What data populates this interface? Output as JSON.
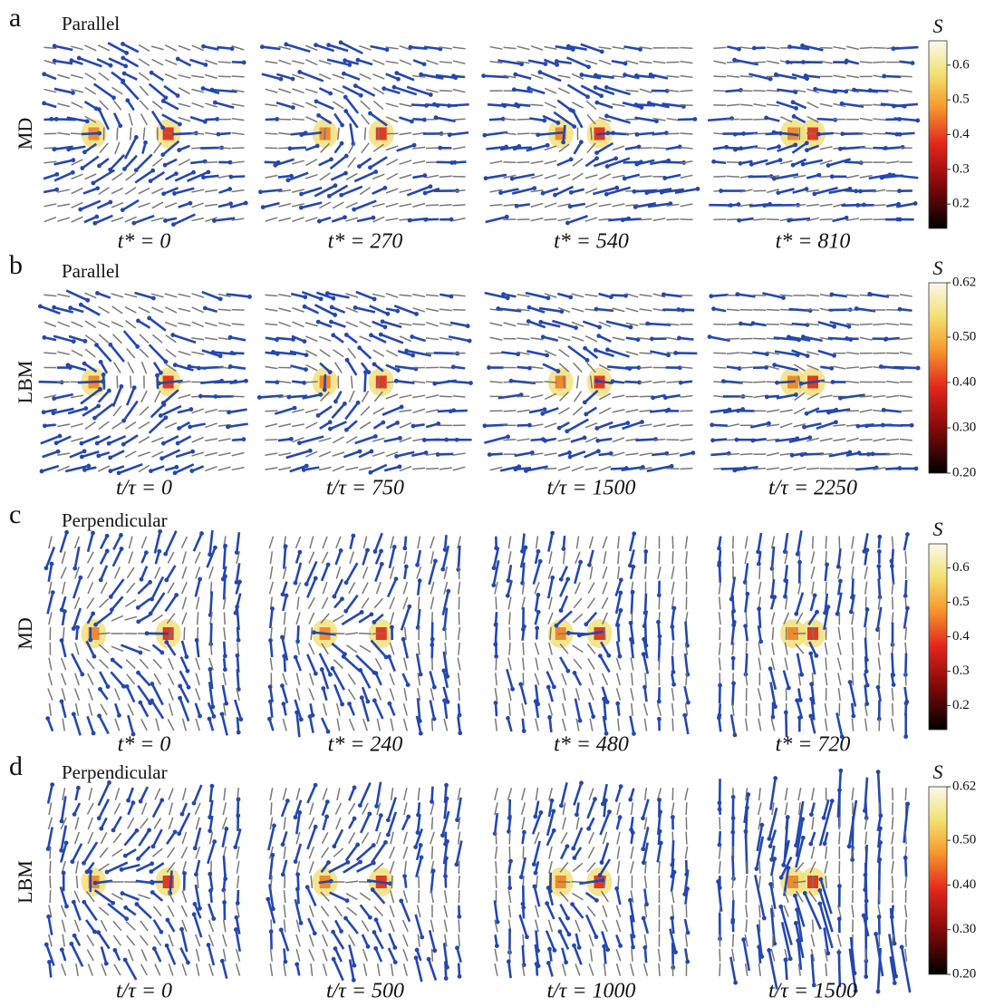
{
  "rows": [
    {
      "letter": "a",
      "title": "Parallel",
      "method": "MD",
      "times": [
        "t* = 0",
        "t* = 270",
        "t* = 540",
        "t* = 810"
      ],
      "colorbar": {
        "label": "S",
        "lim": [
          0.13,
          0.67
        ],
        "ticks": [
          0.2,
          0.3,
          0.4,
          0.5,
          0.6
        ]
      }
    },
    {
      "letter": "b",
      "title": "Parallel",
      "method": "LBM",
      "times": [
        "t/τ = 0",
        "t/τ = 750",
        "t/τ = 1500",
        "t/τ = 2250"
      ],
      "colorbar": {
        "label": "S",
        "lim": [
          0.2,
          0.62
        ],
        "ticks": [
          {
            "value": 0.2,
            "label": "0.20"
          },
          {
            "value": 0.3,
            "label": "0.30"
          },
          {
            "value": 0.4,
            "label": "0.40"
          },
          {
            "value": 0.5,
            "label": "0.50"
          },
          0.62
        ]
      }
    },
    {
      "letter": "c",
      "title": "Perpendicular",
      "method": "MD",
      "times": [
        "t* = 0",
        "t* = 240",
        "t* = 480",
        "t* = 720"
      ],
      "colorbar": {
        "label": "S",
        "lim": [
          0.13,
          0.67
        ],
        "ticks": [
          0.2,
          0.3,
          0.4,
          0.5,
          0.6
        ]
      }
    },
    {
      "letter": "d",
      "title": "Perpendicular",
      "method": "LBM",
      "times": [
        "t/τ = 0",
        "t/τ = 500",
        "t/τ = 1000",
        "t/τ = 1500"
      ],
      "colorbar": {
        "label": "S",
        "lim": [
          0.2,
          0.62
        ],
        "ticks": [
          {
            "value": 0.2,
            "label": "0.20"
          },
          {
            "value": 0.3,
            "label": "0.30"
          },
          {
            "value": 0.4,
            "label": "0.40"
          },
          {
            "value": 0.5,
            "label": "0.50"
          },
          0.62
        ]
      }
    }
  ]
}
